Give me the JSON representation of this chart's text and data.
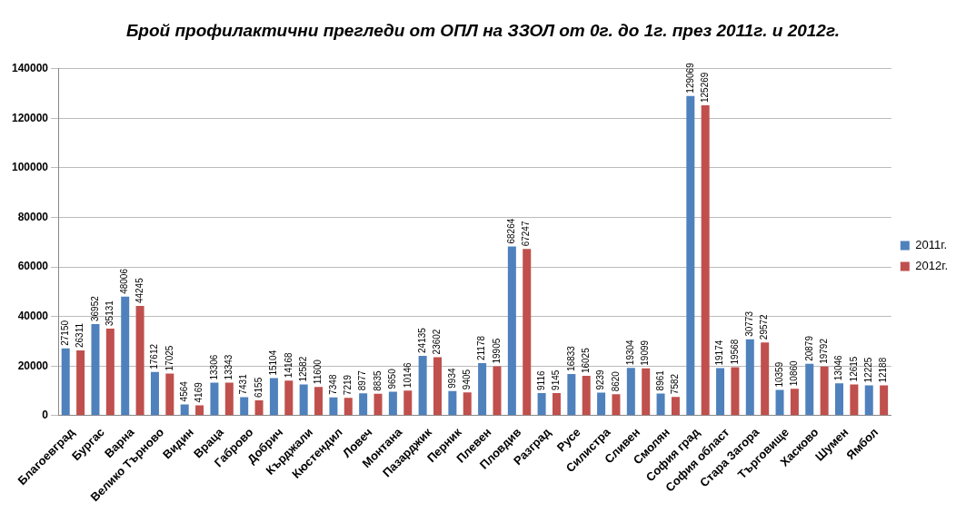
{
  "chart_data": {
    "type": "bar",
    "title": "Брой профилактични прегледи от ОПЛ на ЗЗОЛ от 0г. до 1г. през 2011г. и 2012г.",
    "categories": [
      "Благоевград",
      "Бургас",
      "Варна",
      "Велико Търново",
      "Видин",
      "Враца",
      "Габрово",
      "Добрич",
      "Кърджали",
      "Кюстендил",
      "Ловеч",
      "Монтана",
      "Пазарджик",
      "Перник",
      "Плевен",
      "Пловдив",
      "Разград",
      "Русе",
      "Силистра",
      "Сливен",
      "Смолян",
      "София град",
      "София област",
      "Стара Загора",
      "Търговище",
      "Хасково",
      "Шумен",
      "Ямбол"
    ],
    "series": [
      {
        "name": "2011г.",
        "color": "#4f81bd",
        "values": [
          27150,
          36952,
          48006,
          17612,
          4564,
          13306,
          7431,
          15104,
          12582,
          7348,
          8977,
          9650,
          24135,
          9934,
          21178,
          68264,
          9116,
          16833,
          9239,
          19304,
          8961,
          129069,
          19174,
          30773,
          10359,
          20879,
          13046,
          12225
        ]
      },
      {
        "name": "2012г.",
        "color": "#c0504d",
        "values": [
          26311,
          35131,
          44245,
          17025,
          4169,
          13343,
          6155,
          14168,
          11600,
          7219,
          8835,
          10146,
          23602,
          9405,
          19905,
          67247,
          9145,
          16025,
          8620,
          19099,
          7582,
          125269,
          19568,
          29572,
          10860,
          19792,
          12615,
          12188
        ]
      }
    ],
    "ylim": [
      0,
      140000
    ],
    "yticks": [
      0,
      20000,
      40000,
      60000,
      80000,
      100000,
      120000,
      140000
    ],
    "grid": "y",
    "legend": "right",
    "data_labels": true
  }
}
